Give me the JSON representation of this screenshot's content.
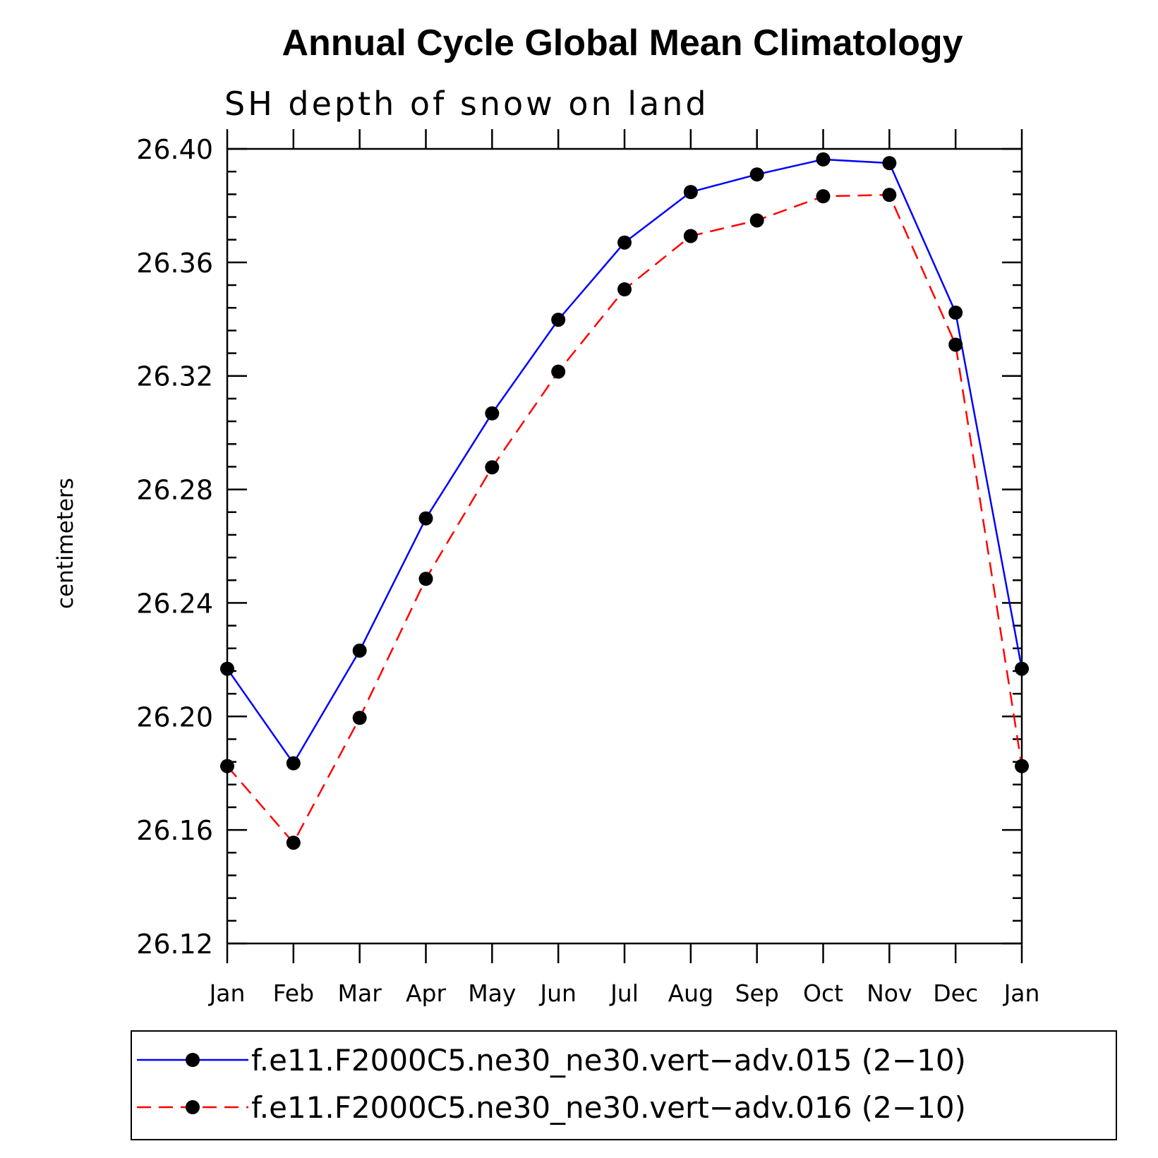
{
  "chart_data": {
    "type": "line",
    "title": "Annual Cycle Global Mean Climatology",
    "subtitle": "SH depth of snow on land",
    "ylabel": "centimeters",
    "xlabel": "",
    "ylim": [
      26.12,
      26.4
    ],
    "y_ticks": [
      "26.12",
      "26.16",
      "26.20",
      "26.24",
      "26.28",
      "26.32",
      "26.36",
      "26.40"
    ],
    "categories": [
      "Jan",
      "Feb",
      "Mar",
      "Apr",
      "May",
      "Jun",
      "Jul",
      "Aug",
      "Sep",
      "Oct",
      "Nov",
      "Dec",
      "Jan"
    ],
    "series": [
      {
        "name": "f.e11.F2000C5.ne30_ne30.vert−adv.015 (2−10)",
        "color": "#0000ff",
        "dash": "solid",
        "values": [
          26.2168,
          26.1835,
          26.2232,
          26.2698,
          26.3068,
          26.3398,
          26.367,
          26.3848,
          26.391,
          26.3963,
          26.395,
          26.3423,
          26.2168
        ]
      },
      {
        "name": "f.e11.F2000C5.ne30_ne30.vert−adv.016 (2−10)",
        "color": "#ff0000",
        "dash": "dashed",
        "values": [
          26.1825,
          26.1555,
          26.1995,
          26.2485,
          26.2878,
          26.3215,
          26.3505,
          26.3693,
          26.3748,
          26.3833,
          26.3838,
          26.331,
          26.1825
        ]
      }
    ],
    "marker_color": "#000000",
    "grid": false,
    "legend_position": "bottom"
  }
}
